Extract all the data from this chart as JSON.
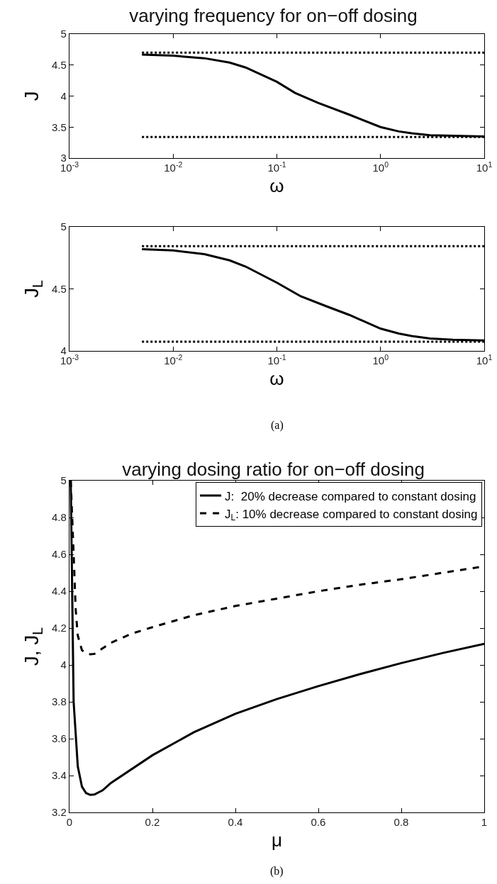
{
  "chart_data": [
    {
      "type": "line",
      "title": "varying frequency for on−off dosing",
      "xlabel": "ω",
      "ylabel": "J",
      "log": "x",
      "legend": false,
      "xlim": [
        0.001,
        10
      ],
      "xticks": [
        {
          "value": 0.001,
          "label": "10$^{-3}$"
        },
        {
          "value": 0.01,
          "label": "10$^{-2}$"
        },
        {
          "value": 0.1,
          "label": "10$^{-1}$"
        },
        {
          "value": 1,
          "label": "10$^{0}$"
        },
        {
          "value": 10,
          "label": "10$^{1}$"
        }
      ],
      "ylim": [
        3,
        5
      ],
      "yticks": [
        3,
        3.5,
        4,
        4.5,
        5
      ],
      "series": [
        {
          "color": "#000000",
          "line_style": "solid",
          "x": [
            0.005,
            0.01,
            0.02,
            0.035,
            0.05,
            0.1,
            0.15,
            0.25,
            0.5,
            1,
            1.5,
            2,
            3,
            5,
            10
          ],
          "values": [
            4.67,
            4.65,
            4.61,
            4.54,
            4.46,
            4.23,
            4.05,
            3.89,
            3.7,
            3.5,
            3.43,
            3.4,
            3.37,
            3.36,
            3.35
          ]
        },
        {
          "color": "#000000",
          "line_style": "dotted",
          "x": [
            0.005,
            10
          ],
          "values": [
            4.7,
            4.7
          ]
        },
        {
          "color": "#000000",
          "line_style": "dotted",
          "x": [
            0.005,
            10
          ],
          "values": [
            3.34,
            3.34
          ]
        }
      ]
    },
    {
      "type": "line",
      "xlabel": "ω",
      "ylabel": "J$_{L}$",
      "log": "x",
      "legend": false,
      "xlim": [
        0.001,
        10
      ],
      "xticks": [
        {
          "value": 0.001,
          "label": "10$^{-3}$"
        },
        {
          "value": 0.01,
          "label": "10$^{-2}$"
        },
        {
          "value": 0.1,
          "label": "10$^{-1}$"
        },
        {
          "value": 1,
          "label": "10$^{0}$"
        },
        {
          "value": 10,
          "label": "10$^{1}$"
        }
      ],
      "ylim": [
        4,
        5
      ],
      "yticks": [
        4,
        4.5,
        5
      ],
      "annotations": [
        "(a)"
      ],
      "series": [
        {
          "color": "#000000",
          "line_style": "solid",
          "x": [
            0.005,
            0.01,
            0.02,
            0.035,
            0.05,
            0.1,
            0.17,
            0.3,
            0.5,
            1,
            1.5,
            2,
            3,
            5,
            10
          ],
          "values": [
            4.82,
            4.81,
            4.78,
            4.73,
            4.68,
            4.55,
            4.44,
            4.36,
            4.29,
            4.18,
            4.14,
            4.12,
            4.1,
            4.09,
            4.085
          ]
        },
        {
          "color": "#000000",
          "line_style": "dotted",
          "x": [
            0.005,
            10
          ],
          "values": [
            4.845,
            4.845
          ]
        },
        {
          "color": "#000000",
          "line_style": "dotted",
          "x": [
            0.005,
            10
          ],
          "values": [
            4.075,
            4.075
          ]
        }
      ]
    },
    {
      "type": "line",
      "title": "varying dosing ratio for on−off dosing",
      "xlabel": "μ",
      "ylabel": "J, J$_{L}$",
      "legend": "top right",
      "xlim": [
        0,
        1
      ],
      "xticks": [
        0,
        0.2,
        0.4,
        0.6,
        0.8,
        1
      ],
      "ylim": [
        3.2,
        5
      ],
      "yticks": [
        3.2,
        3.4,
        3.6,
        3.8,
        4,
        4.2,
        4.4,
        4.6,
        4.8,
        5
      ],
      "annotations": [
        "(b)"
      ],
      "series": [
        {
          "name": "J:  20% decrease compared to constant dosing",
          "color": "#000000",
          "line_style": "solid",
          "x": [
            0.003,
            0.01,
            0.02,
            0.03,
            0.04,
            0.05,
            0.06,
            0.08,
            0.1,
            0.2,
            0.3,
            0.4,
            0.5,
            0.6,
            0.7,
            0.8,
            0.9,
            1
          ],
          "values": [
            5,
            3.8,
            3.45,
            3.34,
            3.305,
            3.295,
            3.297,
            3.32,
            3.36,
            3.51,
            3.635,
            3.735,
            3.815,
            3.885,
            3.95,
            4.01,
            4.065,
            4.115
          ]
        },
        {
          "name": "J$_{L}$: 10% decrease compared to constant dosing",
          "color": "#000000",
          "line_style": "dashed",
          "x": [
            0.003,
            0.01,
            0.015,
            0.02,
            0.03,
            0.04,
            0.05,
            0.06,
            0.08,
            0.1,
            0.15,
            0.2,
            0.3,
            0.4,
            0.5,
            0.6,
            0.7,
            0.8,
            0.9,
            1
          ],
          "values": [
            5,
            4.6,
            4.3,
            4.16,
            4.08,
            4.063,
            4.058,
            4.06,
            4.09,
            4.12,
            4.17,
            4.205,
            4.27,
            4.32,
            4.36,
            4.4,
            4.435,
            4.465,
            4.5,
            4.535
          ]
        }
      ]
    }
  ]
}
